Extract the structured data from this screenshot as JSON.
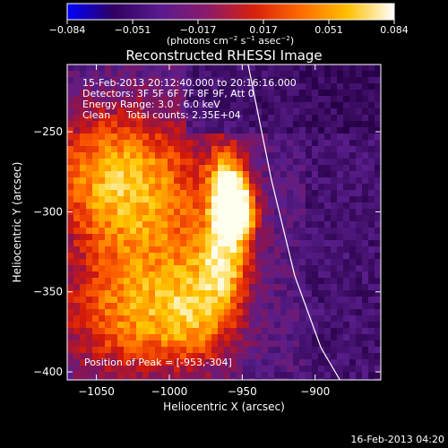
{
  "chart_data": {
    "type": "heatmap",
    "title": "Reconstructed RHESSI Image",
    "xlabel": "Heliocentric X (arcsec)",
    "ylabel": "Heliocentric Y (arcsec)",
    "xlim": [
      -1070,
      -855
    ],
    "ylim": [
      -405,
      -208
    ],
    "x_ticks": [
      -1050,
      -1000,
      -950,
      -900
    ],
    "y_ticks": [
      -250,
      -300,
      -350,
      -400
    ],
    "x_tick_labels": [
      "−1050",
      "−1000",
      "−950",
      "−900"
    ],
    "y_tick_labels": [
      "−250",
      "−300",
      "−350",
      "−400"
    ],
    "colorbar": {
      "range": [
        -0.084,
        0.084
      ],
      "tick_labels": [
        "−0.084",
        "−0.051",
        "−0.017",
        "0.017",
        "0.051",
        "0.084"
      ],
      "label_main": "(photons cm",
      "label_sup1": "−2",
      "label_mid": " s",
      "label_sup2": "−1",
      "label_mid2": " asec",
      "label_sup3": "−2",
      "label_end": ")",
      "colors": [
        "#0000ff",
        "#300060",
        "#5a1a90",
        "#8c1a6a",
        "#d8200c",
        "#ff6a00",
        "#ffc000",
        "#ffffff"
      ]
    },
    "annotations": {
      "time_range": "15-Feb-2013 20:12:40.000 to 20:16:16.000",
      "detectors": "Detectors: 3F 5F 6F 7F 8F 9F, Att 0",
      "energy_range": "Energy Range: 3.0 - 6.0 keV",
      "clean_label": "Clean",
      "total_counts": "Total counts: 2.35E+04",
      "peak_position": "Position of Peak = [-953,-304]"
    },
    "peak": [
      -953,
      -304
    ],
    "limb_curve": [
      [
        -946,
        -208
      ],
      [
        -930,
        -280
      ],
      [
        -914,
        -340
      ],
      [
        -896,
        -385
      ],
      [
        -883,
        -405
      ]
    ],
    "sources": [
      {
        "x": -955,
        "y": -300,
        "amp": 1.0,
        "sx": 9,
        "sy": 11
      },
      {
        "x": -960,
        "y": -280,
        "amp": 0.55,
        "sx": 10,
        "sy": 16
      },
      {
        "x": -962,
        "y": -330,
        "amp": 0.5,
        "sx": 12,
        "sy": 18
      },
      {
        "x": -1040,
        "y": -275,
        "amp": 0.45,
        "sx": 35,
        "sy": 30
      },
      {
        "x": -1010,
        "y": -320,
        "amp": 0.4,
        "sx": 40,
        "sy": 45
      },
      {
        "x": -1030,
        "y": -370,
        "amp": 0.32,
        "sx": 35,
        "sy": 25
      },
      {
        "x": -980,
        "y": -365,
        "amp": 0.35,
        "sx": 20,
        "sy": 22
      }
    ],
    "background_level": 0.18,
    "footer_timestamp": "16-Feb-2013 04:20"
  }
}
